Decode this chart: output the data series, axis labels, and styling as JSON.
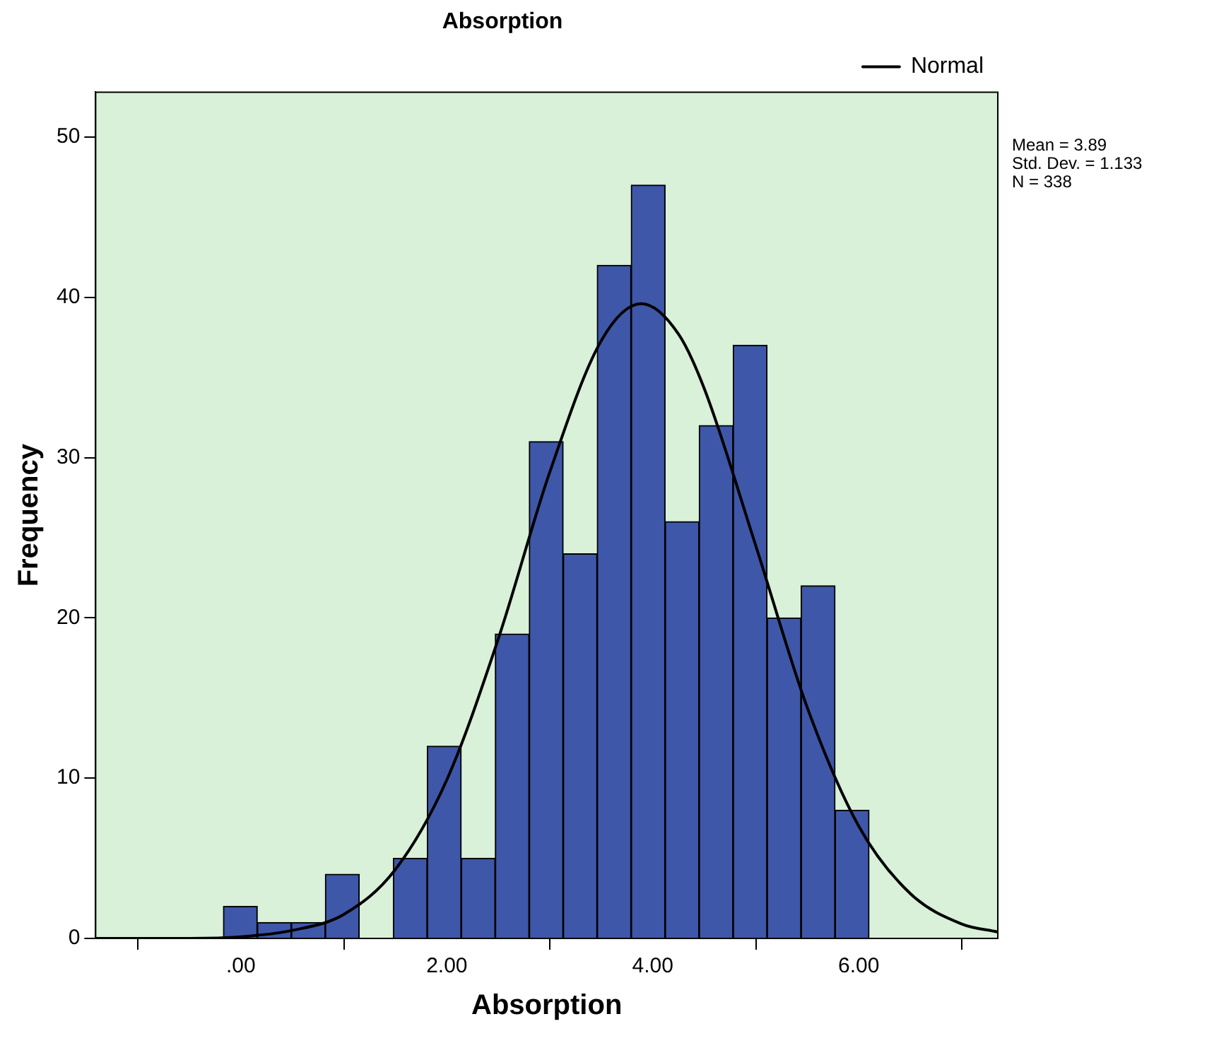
{
  "chart_data": {
    "type": "histogram",
    "title": "Absorption",
    "xlabel": "Absorption",
    "ylabel": "Frequency",
    "bins": [
      -0.17,
      0.16,
      0.49,
      0.82,
      1.15,
      1.48,
      1.81,
      2.14,
      2.47,
      2.8,
      3.13,
      3.46,
      3.79,
      4.12,
      4.45,
      4.78,
      5.11,
      5.44,
      5.77,
      6.1
    ],
    "values": [
      2,
      1,
      1,
      4,
      0,
      5,
      12,
      5,
      19,
      31,
      24,
      42,
      47,
      26,
      32,
      37,
      20,
      22,
      8
    ],
    "color": "#3f57a8",
    "series": [
      {
        "name": "Normal",
        "type": "line",
        "color": "#000000",
        "x": [
          -1.41,
          -1,
          -0.5,
          0,
          0.5,
          1,
          1.5,
          2,
          2.5,
          3,
          3.5,
          3.89,
          4.25,
          4.5,
          5,
          5.5,
          6,
          6.5,
          7,
          7.35
        ],
        "values": [
          0,
          0,
          0,
          0.1,
          0.5,
          1.5,
          4.3,
          9.9,
          18.7,
          29.1,
          37.3,
          39.6,
          37.7,
          34.3,
          24.5,
          14.4,
          7,
          2.8,
          0.9,
          0.4
        ]
      }
    ],
    "xlim": [
      -1.41,
      7.35
    ],
    "xticks": [
      {
        "value": 0,
        "label": ".00"
      },
      {
        "value": 2,
        "label": "2.00"
      },
      {
        "value": 4,
        "label": "4.00"
      },
      {
        "value": 6,
        "label": "6.00"
      }
    ],
    "ylim": [
      0,
      52.8
    ],
    "yticks": [
      0,
      10,
      20,
      30,
      40,
      50
    ],
    "grid": false,
    "legend": "top right",
    "marker": "none",
    "line_style": "solid",
    "annotations": [
      "Mean = 3.89",
      "Std. Dev. = 1.133",
      "N = 338"
    ]
  }
}
